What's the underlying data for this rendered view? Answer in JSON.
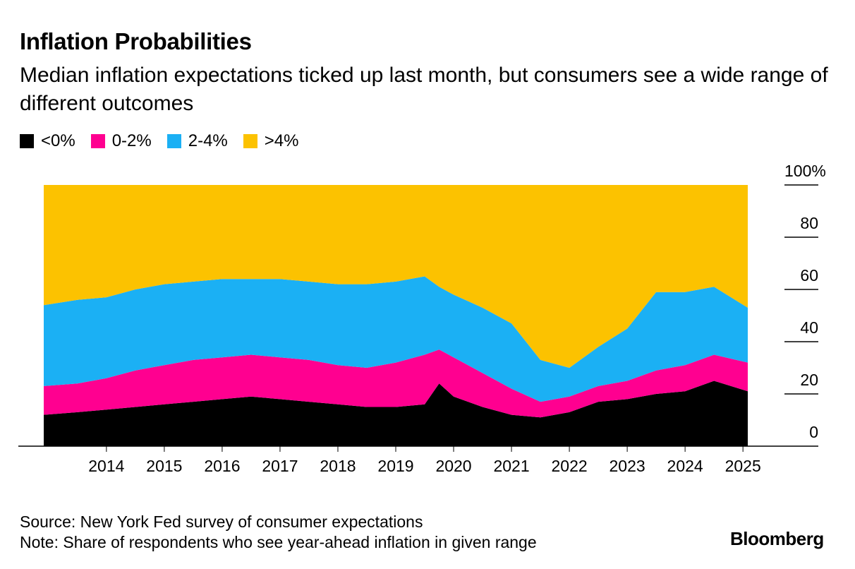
{
  "title": "Inflation Probabilities",
  "subtitle": "Median inflation expectations ticked up last month, but consumers see a wide range of different outcomes",
  "source": "Source: New York Fed survey of consumer expectations",
  "note": "Note: Share of respondents who see year-ahead inflation in given range",
  "brand": "Bloomberg",
  "legend": [
    {
      "label": "<0%",
      "color": "#000000"
    },
    {
      "label": "0-2%",
      "color": "#ff0090"
    },
    {
      "label": "2-4%",
      "color": "#1bb0f4"
    },
    {
      "label": ">4%",
      "color": "#fcc200"
    }
  ],
  "chart_data": {
    "type": "area",
    "stacked": true,
    "x_start": "2013-06",
    "x_end": "2025-08",
    "x_ticks": [
      "2014",
      "2015",
      "2016",
      "2017",
      "2018",
      "2019",
      "2020",
      "2021",
      "2022",
      "2023",
      "2024",
      "2025"
    ],
    "y_ticks": [
      "0",
      "20",
      "40",
      "60",
      "80",
      "100%"
    ],
    "ylim": [
      0,
      100
    ],
    "y_axis_side": "right",
    "grid": false,
    "legend_position": "top-left",
    "x": [
      "2013-06",
      "2014-01",
      "2014-07",
      "2015-01",
      "2015-07",
      "2016-01",
      "2016-07",
      "2017-01",
      "2017-07",
      "2018-01",
      "2018-07",
      "2019-01",
      "2019-07",
      "2020-01",
      "2020-04",
      "2020-07",
      "2021-01",
      "2021-07",
      "2022-01",
      "2022-07",
      "2023-01",
      "2023-07",
      "2024-01",
      "2024-07",
      "2025-01",
      "2025-08"
    ],
    "series": [
      {
        "name": "<0%",
        "color": "#000000",
        "values": [
          12,
          13,
          14,
          15,
          16,
          17,
          18,
          19,
          18,
          17,
          16,
          15,
          15,
          16,
          24,
          19,
          15,
          12,
          11,
          13,
          17,
          18,
          20,
          21,
          25,
          21
        ]
      },
      {
        "name": "0-2%",
        "color": "#ff0090",
        "values": [
          11,
          11,
          12,
          14,
          15,
          16,
          16,
          16,
          16,
          16,
          15,
          15,
          17,
          19,
          13,
          15,
          13,
          10,
          6,
          6,
          6,
          7,
          9,
          10,
          10,
          11
        ]
      },
      {
        "name": "2-4%",
        "color": "#1bb0f4",
        "values": [
          31,
          32,
          31,
          31,
          31,
          30,
          30,
          29,
          30,
          30,
          31,
          32,
          31,
          30,
          24,
          24,
          25,
          25,
          16,
          11,
          15,
          20,
          30,
          28,
          26,
          21
        ]
      },
      {
        "name": ">4%",
        "color": "#fcc200",
        "values": [
          46,
          44,
          43,
          40,
          38,
          37,
          36,
          36,
          36,
          37,
          38,
          38,
          37,
          35,
          39,
          42,
          47,
          53,
          67,
          70,
          62,
          55,
          41,
          41,
          39,
          47
        ]
      }
    ]
  }
}
